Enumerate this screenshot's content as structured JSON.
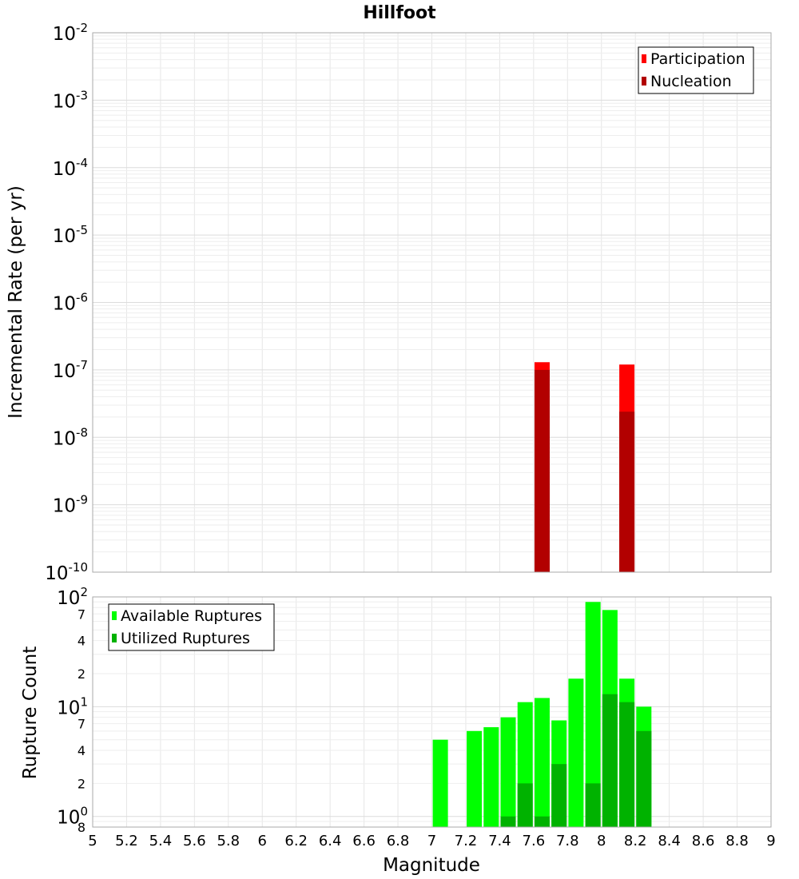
{
  "chart_data": [
    {
      "type": "bar",
      "title": "Hillfoot",
      "ylabel": "Incremental Rate (per yr)",
      "xlabel": "Magnitude",
      "yscale": "log",
      "ylim": [
        1e-10,
        0.01
      ],
      "y_tick_labels": [
        {
          "base": "10",
          "exp": "-2",
          "value": 0.01
        },
        {
          "base": "10",
          "exp": "-3",
          "value": 0.001
        },
        {
          "base": "10",
          "exp": "-4",
          "value": 0.0001
        },
        {
          "base": "10",
          "exp": "-5",
          "value": 1e-05
        },
        {
          "base": "10",
          "exp": "-6",
          "value": 1e-06
        },
        {
          "base": "10",
          "exp": "-7",
          "value": 1e-07
        },
        {
          "base": "10",
          "exp": "-8",
          "value": 1e-08
        },
        {
          "base": "10",
          "exp": "-9",
          "value": 1e-09
        },
        {
          "base": "10",
          "exp": "-10",
          "value": 1e-10
        }
      ],
      "legend_position": "top-right",
      "series": [
        {
          "name": "Participation",
          "color": "#ff0000",
          "points": [
            {
              "x": 7.65,
              "y": 1.3e-07
            },
            {
              "x": 8.15,
              "y": 1.2e-07
            }
          ]
        },
        {
          "name": "Nucleation",
          "color": "#b20000",
          "points": [
            {
              "x": 7.65,
              "y": 1e-07
            },
            {
              "x": 8.15,
              "y": 2.4e-08
            }
          ]
        }
      ]
    },
    {
      "type": "bar",
      "ylabel": "Rupture Count",
      "xlabel": "Magnitude",
      "yscale": "log",
      "ylim": [
        0.8,
        100
      ],
      "xlim": [
        5,
        9
      ],
      "x_ticks": [
        "5",
        "5.2",
        "5.4",
        "5.6",
        "5.8",
        "6",
        "6.2",
        "6.4",
        "6.6",
        "6.8",
        "7",
        "7.2",
        "7.4",
        "7.6",
        "7.8",
        "8",
        "8.2",
        "8.4",
        "8.6",
        "8.8",
        "9"
      ],
      "y_major_labels": [
        {
          "base": "10",
          "exp": "2",
          "value": 100
        },
        {
          "base": "10",
          "exp": "1",
          "value": 10
        },
        {
          "base": "10",
          "exp": "0",
          "value": 1
        }
      ],
      "y_minor_labels": [
        {
          "label": "7",
          "value": 70
        },
        {
          "label": "4",
          "value": 40
        },
        {
          "label": "2",
          "value": 20
        },
        {
          "label": "7",
          "value": 7
        },
        {
          "label": "4",
          "value": 4
        },
        {
          "label": "2",
          "value": 2
        },
        {
          "label": "8",
          "value": 0.8
        }
      ],
      "legend_position": "top-left",
      "series": [
        {
          "name": "Available Ruptures",
          "color": "#00ff00",
          "points": [
            {
              "x": 7.05,
              "y": 5
            },
            {
              "x": 7.25,
              "y": 6
            },
            {
              "x": 7.35,
              "y": 6.5
            },
            {
              "x": 7.45,
              "y": 8
            },
            {
              "x": 7.55,
              "y": 11
            },
            {
              "x": 7.65,
              "y": 12
            },
            {
              "x": 7.75,
              "y": 7.5
            },
            {
              "x": 7.85,
              "y": 18
            },
            {
              "x": 7.95,
              "y": 90
            },
            {
              "x": 8.05,
              "y": 76
            },
            {
              "x": 8.15,
              "y": 18
            },
            {
              "x": 8.25,
              "y": 10
            }
          ]
        },
        {
          "name": "Utilized Ruptures",
          "color": "#00b200",
          "points": [
            {
              "x": 7.45,
              "y": 1
            },
            {
              "x": 7.55,
              "y": 2
            },
            {
              "x": 7.65,
              "y": 1
            },
            {
              "x": 7.75,
              "y": 3
            },
            {
              "x": 7.95,
              "y": 2
            },
            {
              "x": 8.05,
              "y": 13
            },
            {
              "x": 8.15,
              "y": 11
            },
            {
              "x": 8.25,
              "y": 6
            }
          ]
        }
      ]
    }
  ]
}
